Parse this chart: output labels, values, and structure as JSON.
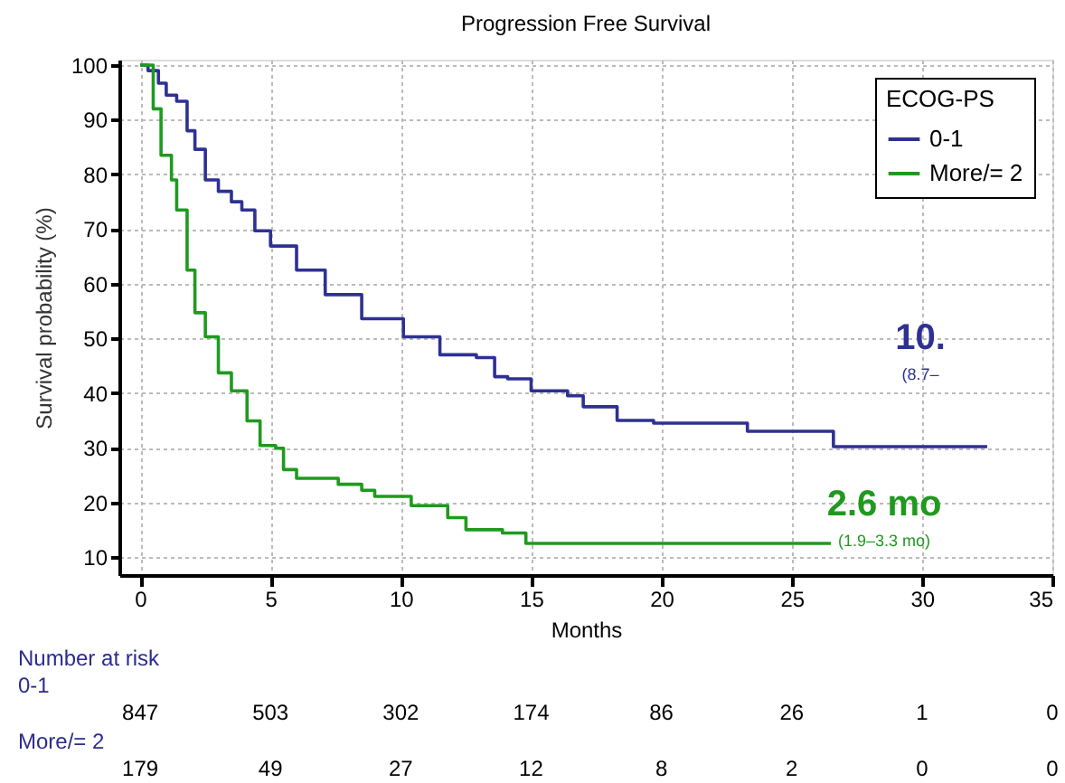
{
  "chart_data": {
    "type": "step",
    "title": "Progression Free Survival",
    "xlabel": "Months",
    "ylabel": "Survival probability (%)",
    "legend_title": "ECOG-PS",
    "legend": "top right",
    "grid": true,
    "line_style": "solid",
    "marker": "none",
    "xlim": [
      -0.8,
      35
    ],
    "xticks": [
      0,
      5,
      10,
      15,
      20,
      25,
      30,
      35
    ],
    "ylim": [
      6.7,
      101
    ],
    "yticks": [
      10,
      20,
      30,
      40,
      50,
      60,
      70,
      80,
      90,
      100
    ],
    "series": [
      {
        "name": "0-1",
        "color": "#2e3192",
        "x": [
          0,
          0.3,
          0.7,
          1.0,
          1.4,
          1.8,
          2.1,
          2.5,
          3.0,
          3.5,
          3.9,
          4.4,
          5.0,
          6.0,
          7.1,
          8.5,
          10.1,
          11.5,
          12.9,
          13.6,
          14.1,
          15.0,
          16.4,
          17.0,
          18.3,
          19.7,
          23.3,
          26.6,
          32.5
        ],
        "values": [
          100,
          99,
          96.7,
          94.5,
          93.4,
          88,
          84.6,
          79,
          76.9,
          75,
          73.5,
          69.7,
          66.9,
          62.5,
          58,
          53.6,
          50.3,
          47,
          46.5,
          43,
          42.6,
          40.4,
          39.5,
          37.5,
          35,
          34.5,
          33,
          30.2,
          30.2
        ]
      },
      {
        "name": "More/= 2",
        "color": "#1f9a1f",
        "x": [
          0,
          0.2,
          0.5,
          0.8,
          1.2,
          1.4,
          1.8,
          2.1,
          2.5,
          3.0,
          3.5,
          4.1,
          4.6,
          5.2,
          5.5,
          6.0,
          7.1,
          7.6,
          8.5,
          9.0,
          10.4,
          11.8,
          12.5,
          13.9,
          14.8,
          26.5
        ],
        "values": [
          100,
          100,
          92,
          83.5,
          79,
          73.5,
          62.5,
          54.7,
          50.3,
          43.7,
          40.4,
          34.9,
          30.4,
          29.9,
          26,
          24.4,
          24.4,
          23.3,
          22.2,
          21.1,
          19.4,
          17.2,
          15,
          14.4,
          12.5,
          12.5
        ]
      }
    ],
    "annotations": [
      "Number at risk",
      "0-1",
      "847",
      "503",
      "302",
      "174",
      "86",
      "26",
      "1",
      "0",
      "More/= 2",
      "179",
      "49",
      "27",
      "12",
      "8",
      "2",
      "0",
      "0",
      "10.",
      "(8.7–",
      "2.6 mo",
      "(1.9–3.3 mo)"
    ]
  }
}
